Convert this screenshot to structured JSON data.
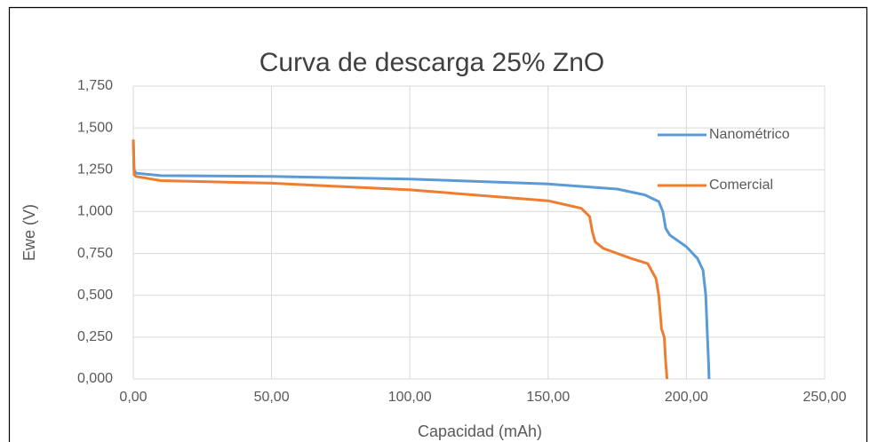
{
  "chart_data": {
    "type": "line",
    "title": "Curva de descarga 25% ZnO",
    "x_label": "Capacidad (mAh)",
    "y_label": "Ewe (V)",
    "xlim": [
      0,
      250
    ],
    "ylim": [
      0,
      1.75
    ],
    "xticks": [
      {
        "value": 0,
        "label": "0,00"
      },
      {
        "value": 50,
        "label": "50,00"
      },
      {
        "value": 100,
        "label": "100,00"
      },
      {
        "value": 150,
        "label": "150,00"
      },
      {
        "value": 200,
        "label": "200,00"
      },
      {
        "value": 250,
        "label": "250,00"
      }
    ],
    "yticks": [
      {
        "value": 0,
        "label": "0,000"
      },
      {
        "value": 0.25,
        "label": "0,250"
      },
      {
        "value": 0.5,
        "label": "0,500"
      },
      {
        "value": 0.75,
        "label": "0,750"
      },
      {
        "value": 1,
        "label": "1,000"
      },
      {
        "value": 1.25,
        "label": "1,250"
      },
      {
        "value": 1.5,
        "label": "1,500"
      },
      {
        "value": 1.75,
        "label": "1,750"
      }
    ],
    "grid": true,
    "legend": "right",
    "series": [
      {
        "name": "Nanométrico",
        "color": "#5b9bd5",
        "x": [
          0,
          0.3,
          1,
          10,
          50,
          100,
          150,
          175,
          185,
          190,
          191.5,
          192.5,
          194,
          200,
          204,
          206,
          207,
          207.5,
          208,
          208.2
        ],
        "values": [
          1.43,
          1.25,
          1.23,
          1.215,
          1.21,
          1.195,
          1.165,
          1.135,
          1.1,
          1.06,
          1.0,
          0.9,
          0.86,
          0.79,
          0.72,
          0.65,
          0.5,
          0.3,
          0.1,
          0
        ]
      },
      {
        "name": "Comercial",
        "color": "#ed7d31",
        "x": [
          0,
          0.3,
          1,
          10,
          50,
          100,
          150,
          162,
          165,
          166,
          167,
          170,
          180,
          186,
          189,
          190,
          191,
          192,
          192.5,
          193
        ],
        "values": [
          1.43,
          1.22,
          1.21,
          1.185,
          1.17,
          1.13,
          1.065,
          1.02,
          0.97,
          0.88,
          0.82,
          0.78,
          0.72,
          0.69,
          0.6,
          0.5,
          0.3,
          0.25,
          0.1,
          0
        ]
      }
    ]
  }
}
